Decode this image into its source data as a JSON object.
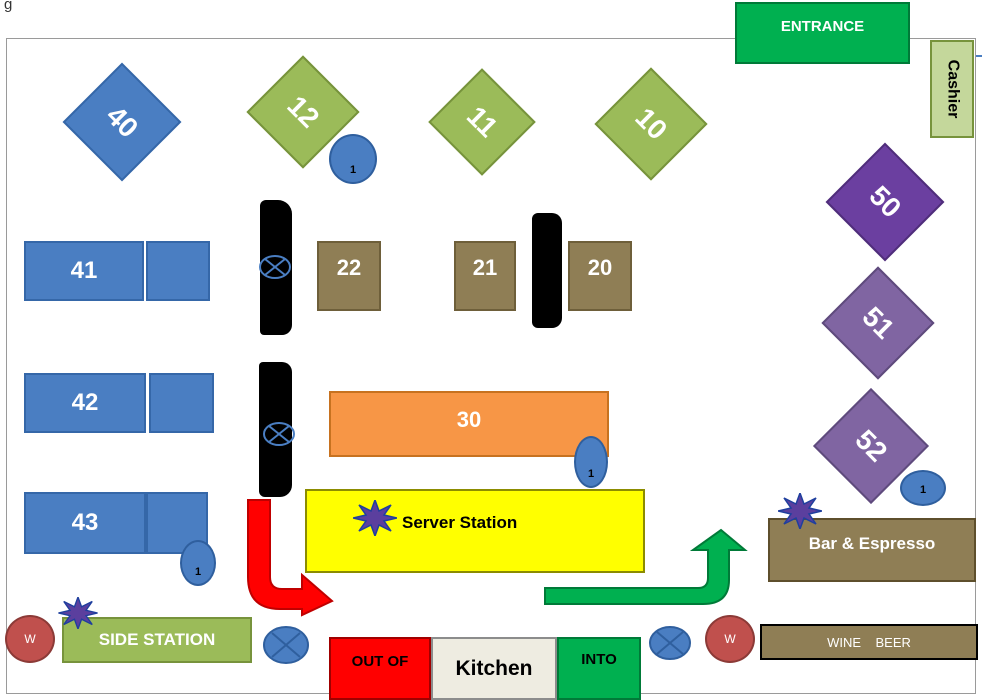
{
  "corner_label": "g",
  "entrance": "ENTRANCE",
  "cashier": "Cashier",
  "diamond_tables": [
    {
      "label": "40",
      "color": "#4a7ec2"
    },
    {
      "label": "12",
      "color": "#9bbb59"
    },
    {
      "label": "11",
      "color": "#9bbb59"
    },
    {
      "label": "10",
      "color": "#9bbb59"
    },
    {
      "label": "50",
      "color": "#6b3fa0"
    },
    {
      "label": "51",
      "color": "#8065a2"
    },
    {
      "label": "52",
      "color": "#8065a2"
    }
  ],
  "rect_tables": [
    {
      "label": "41"
    },
    {
      "label": "42"
    },
    {
      "label": "43"
    },
    {
      "label": "22"
    },
    {
      "label": "21"
    },
    {
      "label": "20"
    }
  ],
  "long_table": {
    "label": "30",
    "color": "#f79646"
  },
  "server_station": "Server Station",
  "side_station": "SIDE STATION",
  "bar": "Bar & Espresso",
  "wine_beer": "WINE    BEER",
  "kitchen": "Kitchen",
  "out_of": "OUT OF",
  "into": "INTO",
  "badge_value": "1",
  "w_label": "W",
  "colors": {
    "entrance": "#00b050",
    "server_station": "#ffff00",
    "out_of": "#ff0000",
    "into": "#00b050",
    "kitchen": "#eeece1",
    "side_station": "#9bbb59",
    "bar": "#8f7e55",
    "arrow_red": "#ff0000",
    "arrow_green": "#00b050",
    "star": "#5b3f9e"
  }
}
